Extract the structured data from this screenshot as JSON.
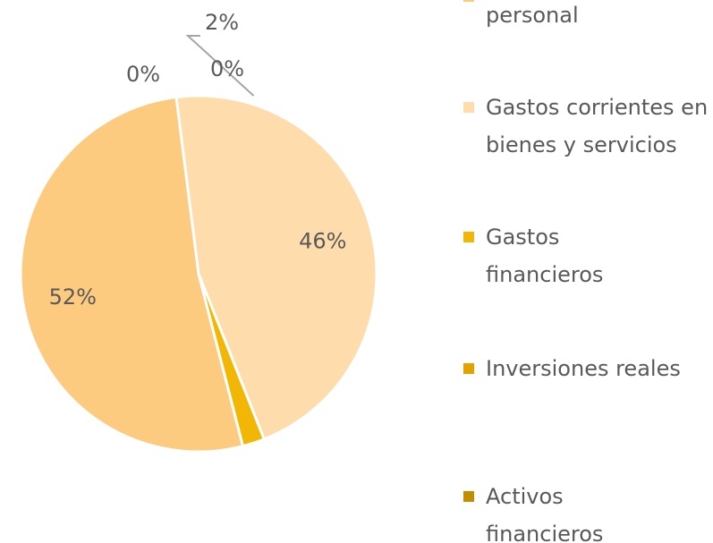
{
  "chart_data": {
    "type": "pie",
    "categories": [
      "personal",
      "Gastos corrientes en bienes y servicios",
      "Gastos financieros",
      "Inversiones reales",
      "Activos financieros"
    ],
    "values": [
      52,
      46,
      2,
      0,
      0
    ],
    "value_labels": [
      "52%",
      "46%",
      "2%",
      "0%",
      "0%"
    ],
    "colors": [
      "#FDCB80",
      "#FEDCAC",
      "#F2B705",
      "#E0A300",
      "#C28E00"
    ],
    "legend": "right"
  }
}
